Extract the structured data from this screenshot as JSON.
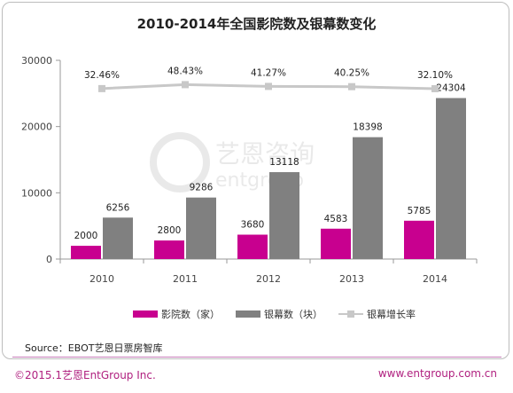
{
  "chart_data": {
    "type": "bar",
    "title": "2010-2014年全国影院数及银幕数变化",
    "categories": [
      "2010",
      "2011",
      "2012",
      "2013",
      "2014"
    ],
    "series": [
      {
        "name": "影院数（家）",
        "type": "bar",
        "values": [
          2000,
          2800,
          3680,
          4583,
          5785
        ],
        "color": "#c8008f"
      },
      {
        "name": "银幕数（块）",
        "type": "bar",
        "values": [
          6256,
          9286,
          13118,
          18398,
          24304
        ],
        "color": "#808080"
      },
      {
        "name": "银幕增长率",
        "type": "line",
        "values": [
          "32.46%",
          "48.43%",
          "41.27%",
          "40.25%",
          "32.10%"
        ],
        "color": "#c8c8c8"
      }
    ],
    "yticks": [
      "0",
      "10000",
      "20000",
      "30000"
    ],
    "ylim": [
      0,
      30000
    ],
    "grid": false,
    "legend_position": "bottom"
  },
  "source": "Source：EBOT艺恩日票房智库",
  "footer": {
    "left": "©2015.1艺恩EntGroup Inc.",
    "right": "www.entgroup.com.cn"
  },
  "watermark": {
    "cn": "艺恩咨询",
    "en": "entgroup"
  },
  "colors": {
    "accent": "#b0207f",
    "cinema_bar": "#c8008f",
    "screen_bar": "#808080",
    "growth_line": "#c8c8c8"
  }
}
